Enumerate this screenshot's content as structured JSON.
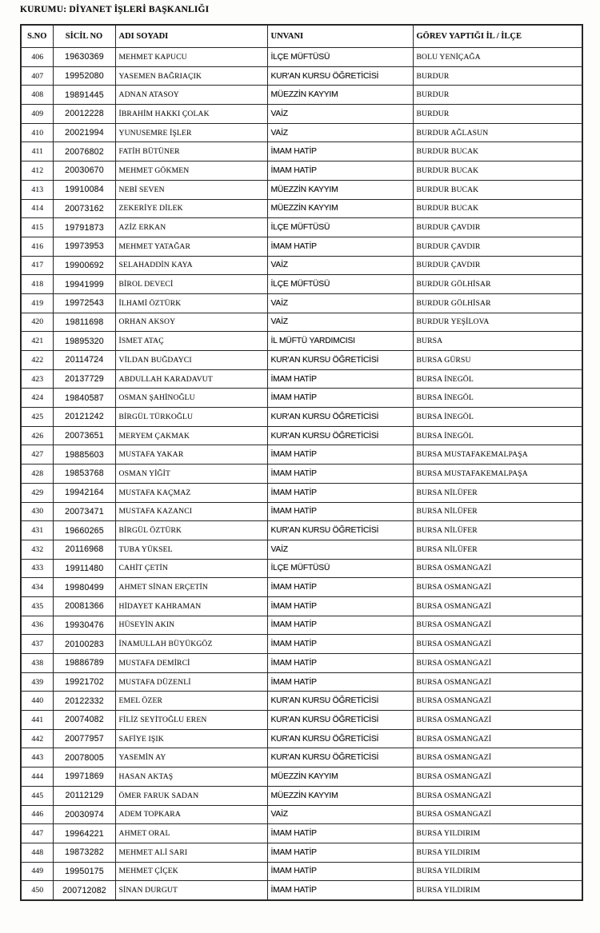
{
  "document": {
    "title": "KURUMU: DİYANET İŞLERİ BAŞKANLIĞI"
  },
  "colors": {
    "paper": "#ffffff",
    "ink": "#1b1b1b",
    "line": "#272727"
  },
  "table": {
    "columns": [
      "S.NO",
      "SİCİL NO",
      "ADI SOYADI",
      "UNVANI",
      "GÖREV YAPTIĞI İL / İLÇE"
    ],
    "rows": [
      [
        "406",
        "19630369",
        "MEHMET KAPUCU",
        "İLÇE MÜFTÜSÜ",
        "BOLU YENİÇAĞA"
      ],
      [
        "407",
        "19952080",
        "YASEMEN BAĞRIAÇIK",
        "KUR'AN KURSU ÖĞRETİCİSİ",
        "BURDUR"
      ],
      [
        "408",
        "19891445",
        "ADNAN ATASOY",
        "MÜEZZİN KAYYIM",
        "BURDUR"
      ],
      [
        "409",
        "20012228",
        "İBRAHİM HAKKI ÇOLAK",
        "VAİZ",
        "BURDUR"
      ],
      [
        "410",
        "20021994",
        "YUNUSEMRE İŞLER",
        "VAİZ",
        "BURDUR AĞLASUN"
      ],
      [
        "411",
        "20076802",
        "FATİH BÜTÜNER",
        "İMAM HATİP",
        "BURDUR BUCAK"
      ],
      [
        "412",
        "20030670",
        "MEHMET GÖKMEN",
        "İMAM HATİP",
        "BURDUR BUCAK"
      ],
      [
        "413",
        "19910084",
        "NEBİ SEVEN",
        "MÜEZZİN KAYYIM",
        "BURDUR BUCAK"
      ],
      [
        "414",
        "20073162",
        "ZEKERİYE DİLEK",
        "MÜEZZİN KAYYIM",
        "BURDUR BUCAK"
      ],
      [
        "415",
        "19791873",
        "AZİZ ERKAN",
        "İLÇE MÜFTÜSÜ",
        "BURDUR ÇAVDIR"
      ],
      [
        "416",
        "19973953",
        "MEHMET YATAĞAR",
        "İMAM HATİP",
        "BURDUR ÇAVDIR"
      ],
      [
        "417",
        "19900692",
        "SELAHADDİN KAYA",
        "VAİZ",
        "BURDUR ÇAVDIR"
      ],
      [
        "418",
        "19941999",
        "BİROL DEVECİ",
        "İLÇE MÜFTÜSÜ",
        "BURDUR GÖLHİSAR"
      ],
      [
        "419",
        "19972543",
        "İLHAMİ ÖZTÜRK",
        "VAİZ",
        "BURDUR GÖLHİSAR"
      ],
      [
        "420",
        "19811698",
        "ORHAN AKSOY",
        "VAİZ",
        "BURDUR YEŞİLOVA"
      ],
      [
        "421",
        "19895320",
        "İSMET ATAÇ",
        "İL MÜFTÜ YARDIMCISI",
        "BURSA"
      ],
      [
        "422",
        "20114724",
        "VİLDAN BUĞDAYCI",
        "KUR'AN KURSU ÖĞRETİCİSİ",
        "BURSA GÜRSU"
      ],
      [
        "423",
        "20137729",
        "ABDULLAH KARADAVUT",
        "İMAM HATİP",
        "BURSA İNEGÖL"
      ],
      [
        "424",
        "19840587",
        "OSMAN ŞAHİNOĞLU",
        "İMAM HATİP",
        "BURSA İNEGÖL"
      ],
      [
        "425",
        "20121242",
        "BİRGÜL TÜRKOĞLU",
        "KUR'AN KURSU ÖĞRETİCİSİ",
        "BURSA İNEGÖL"
      ],
      [
        "426",
        "20073651",
        "MERYEM ÇAKMAK",
        "KUR'AN KURSU ÖĞRETİCİSİ",
        "BURSA İNEGÖL"
      ],
      [
        "427",
        "19885603",
        "MUSTAFA YAKAR",
        "İMAM HATİP",
        "BURSA MUSTAFAKEMALPAŞA"
      ],
      [
        "428",
        "19853768",
        "OSMAN YİĞİT",
        "İMAM HATİP",
        "BURSA MUSTAFAKEMALPAŞA"
      ],
      [
        "429",
        "19942164",
        "MUSTAFA KAÇMAZ",
        "İMAM HATİP",
        "BURSA NİLÜFER"
      ],
      [
        "430",
        "20073471",
        "MUSTAFA KAZANCI",
        "İMAM HATİP",
        "BURSA NİLÜFER"
      ],
      [
        "431",
        "19660265",
        "BİRGÜL ÖZTÜRK",
        "KUR'AN KURSU ÖĞRETİCİSİ",
        "BURSA NİLÜFER"
      ],
      [
        "432",
        "20116968",
        "TUBA YÜKSEL",
        "VAİZ",
        "BURSA NİLÜFER"
      ],
      [
        "433",
        "19911480",
        "CAHİT ÇETİN",
        "İLÇE MÜFTÜSÜ",
        "BURSA OSMANGAZİ"
      ],
      [
        "434",
        "19980499",
        "AHMET SİNAN ERÇETİN",
        "İMAM HATİP",
        "BURSA OSMANGAZİ"
      ],
      [
        "435",
        "20081366",
        "HİDAYET KAHRAMAN",
        "İMAM HATİP",
        "BURSA OSMANGAZİ"
      ],
      [
        "436",
        "19930476",
        "HÜSEYİN AKIN",
        "İMAM HATİP",
        "BURSA OSMANGAZİ"
      ],
      [
        "437",
        "20100283",
        "İNAMULLAH BÜYÜKGÖZ",
        "İMAM HATİP",
        "BURSA OSMANGAZİ"
      ],
      [
        "438",
        "19886789",
        "MUSTAFA DEMİRCİ",
        "İMAM HATİP",
        "BURSA OSMANGAZİ"
      ],
      [
        "439",
        "19921702",
        "MUSTAFA DÜZENLİ",
        "İMAM HATİP",
        "BURSA OSMANGAZİ"
      ],
      [
        "440",
        "20122332",
        "EMEL ÖZER",
        "KUR'AN KURSU ÖĞRETİCİSİ",
        "BURSA OSMANGAZİ"
      ],
      [
        "441",
        "20074082",
        "FİLİZ SEYİTOĞLU EREN",
        "KUR'AN KURSU ÖĞRETİCİSİ",
        "BURSA OSMANGAZİ"
      ],
      [
        "442",
        "20077957",
        "SAFİYE IŞIK",
        "KUR'AN KURSU ÖĞRETİCİSİ",
        "BURSA OSMANGAZİ"
      ],
      [
        "443",
        "20078005",
        "YASEMİN AY",
        "KUR'AN KURSU ÖĞRETİCİSİ",
        "BURSA OSMANGAZİ"
      ],
      [
        "444",
        "19971869",
        "HASAN AKTAŞ",
        "MÜEZZİN KAYYIM",
        "BURSA OSMANGAZİ"
      ],
      [
        "445",
        "20112129",
        "ÖMER FARUK SADAN",
        "MÜEZZİN KAYYIM",
        "BURSA OSMANGAZİ"
      ],
      [
        "446",
        "20030974",
        "ADEM TOPKARA",
        "VAİZ",
        "BURSA OSMANGAZİ"
      ],
      [
        "447",
        "19964221",
        "AHMET ORAL",
        "İMAM HATİP",
        "BURSA YILDIRIM"
      ],
      [
        "448",
        "19873282",
        "MEHMET ALİ SARI",
        "İMAM HATİP",
        "BURSA YILDIRIM"
      ],
      [
        "449",
        "19950175",
        "MEHMET ÇİÇEK",
        "İMAM HATİP",
        "BURSA YILDIRIM"
      ],
      [
        "450",
        "200712082",
        "SİNAN DURGUT",
        "İMAM HATİP",
        "BURSA YILDIRIM"
      ]
    ]
  }
}
